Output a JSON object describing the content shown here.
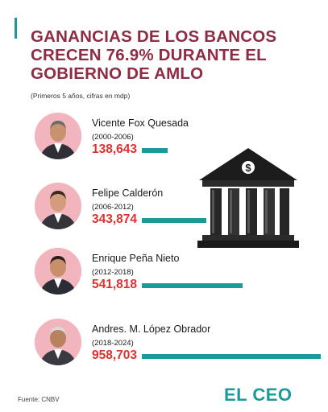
{
  "header": {
    "title_lines": [
      "GANANCIAS DE LOS BANCOS",
      "CRECEN 76.9% DURANTE EL",
      "GOBIERNO DE AMLO"
    ],
    "subtitle": "(Primeros 5 años, cifras en mdp)"
  },
  "colors": {
    "title": "#8e2b45",
    "value": "#e03030",
    "bar": "#1b9a9a",
    "avatar_ring": "#f2b4bd"
  },
  "chart_data": {
    "type": "bar",
    "orientation": "horizontal",
    "title": "GANANCIAS DE LOS BANCOS CRECEN 76.9% DURANTE EL GOBIERNO DE AMLO",
    "subtitle": "(Primeros 5 años, cifras en mdp)",
    "categories": [
      "Vicente Fox Quesada",
      "Felipe Calderón",
      "Enrique Peña Nieto",
      "Andres. M. López Obrador"
    ],
    "periods": [
      "(2000-2006)",
      "(2006-2012)",
      "(2012-2018)",
      "(2018-2024)"
    ],
    "values": [
      138643,
      343874,
      541818,
      958703
    ],
    "value_labels": [
      "138,643",
      "343,874",
      "541,818",
      "958,703"
    ],
    "xlim": [
      0,
      958703
    ],
    "grid": false,
    "legend": "none"
  },
  "illustration": {
    "icon": "bank-dollar-icon"
  },
  "footer": {
    "source": "Fuente: CNBV",
    "logo": "EL CEO"
  }
}
